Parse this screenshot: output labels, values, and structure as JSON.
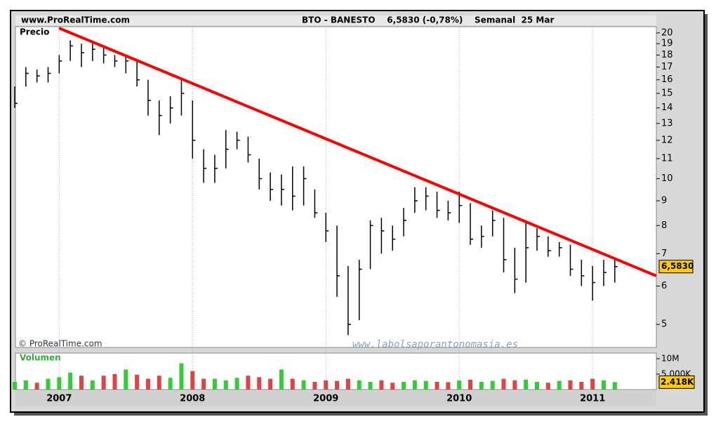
{
  "header": {
    "site": "www.ProRealTime.com",
    "title": "BTO - BANESTO    6,5830 (-0,78%)    Semanal  25 Mar"
  },
  "chart_data": [
    {
      "type": "ohlc",
      "label": "Precio",
      "copyright": "© ProRealTime.com",
      "watermark": "www.labolsaporantonomasia.es",
      "log_scale": true,
      "color": "#000000",
      "categories": [
        null,
        null,
        null,
        null,
        "2007",
        null,
        null,
        null,
        null,
        null,
        null,
        null,
        null,
        null,
        null,
        null,
        "2008",
        null,
        null,
        null,
        null,
        null,
        null,
        null,
        null,
        null,
        null,
        null,
        "2009",
        null,
        null,
        null,
        null,
        null,
        null,
        null,
        null,
        null,
        null,
        null,
        "2010",
        null,
        null,
        null,
        null,
        null,
        null,
        null,
        null,
        null,
        null,
        null,
        "2011",
        null,
        null
      ],
      "close": [
        14.3,
        16.5,
        16.3,
        16.5,
        17.5,
        18.8,
        18.2,
        18.5,
        18.0,
        17.5,
        17.5,
        16.0,
        14.5,
        13.5,
        14.0,
        15.0,
        12.0,
        10.5,
        10.5,
        11.5,
        12.0,
        11.2,
        10.0,
        9.5,
        9.5,
        9.2,
        10.0,
        8.5,
        7.8,
        6.3,
        5.0,
        6.5,
        8.0,
        7.8,
        7.5,
        8.2,
        9.0,
        9.2,
        8.6,
        8.5,
        8.8,
        7.5,
        7.6,
        8.2,
        6.8,
        6.2,
        7.2,
        7.6,
        7.1,
        7.2,
        6.5,
        6.3,
        6.1,
        6.4,
        6.58
      ],
      "high": [
        15.5,
        17.0,
        16.8,
        17.0,
        18.0,
        19.3,
        19.0,
        19.0,
        18.6,
        18.0,
        18.0,
        17.5,
        16.0,
        14.5,
        14.8,
        16.0,
        14.5,
        11.5,
        11.2,
        12.6,
        12.5,
        12.2,
        11.0,
        10.3,
        10.2,
        10.6,
        10.6,
        9.5,
        8.5,
        8.0,
        6.6,
        6.8,
        8.2,
        8.3,
        8.0,
        8.7,
        9.6,
        9.6,
        9.4,
        9.0,
        9.4,
        8.9,
        8.0,
        8.6,
        8.3,
        7.2,
        8.1,
        7.9,
        7.6,
        7.4,
        7.3,
        6.8,
        6.6,
        6.8,
        6.8
      ],
      "low": [
        14.0,
        15.5,
        15.8,
        15.8,
        16.5,
        17.5,
        17.0,
        17.5,
        17.3,
        17.0,
        16.5,
        15.5,
        13.5,
        12.3,
        13.0,
        13.5,
        11.0,
        9.8,
        9.8,
        10.5,
        11.5,
        10.8,
        9.5,
        9.0,
        8.8,
        8.6,
        8.8,
        8.3,
        7.4,
        5.7,
        4.75,
        5.1,
        6.5,
        7.0,
        7.1,
        7.6,
        8.5,
        8.6,
        8.3,
        8.2,
        8.1,
        7.3,
        7.2,
        7.6,
        6.4,
        5.8,
        6.1,
        7.1,
        6.9,
        6.9,
        6.3,
        6.0,
        5.6,
        6.0,
        6.1
      ],
      "last_value": 6.583,
      "last_label": "6,5830",
      "ylim": [
        4.48,
        20.6
      ],
      "yticks": [
        5,
        6,
        7,
        8,
        9,
        10,
        11,
        12,
        13,
        14,
        15,
        16,
        17,
        18,
        19,
        20
      ]
    },
    {
      "type": "volume",
      "label": "Volumen",
      "up_color": "#33cc33",
      "down_color": "#dd4444",
      "values": [
        2.5,
        3.0,
        2.2,
        3.5,
        4.0,
        5.5,
        4.5,
        3.0,
        4.5,
        5.0,
        6.5,
        4.8,
        3.5,
        4.5,
        3.8,
        8.5,
        6.0,
        3.5,
        3.5,
        3.0,
        3.8,
        4.5,
        4.0,
        3.5,
        6.5,
        3.5,
        3.0,
        2.5,
        3.0,
        2.8,
        3.5,
        3.0,
        2.5,
        3.0,
        2.2,
        2.5,
        3.0,
        2.8,
        2.5,
        2.4,
        3.0,
        3.2,
        2.5,
        2.8,
        3.5,
        3.0,
        3.2,
        2.5,
        2.2,
        2.8,
        3.0,
        2.5,
        3.5,
        3.0,
        2.418
      ],
      "last_label": "2.418K",
      "ylim": [
        0,
        11.8
      ],
      "yticks": [
        {
          "value": 10,
          "label": "10M"
        },
        {
          "value": 5,
          "label": "5.000K"
        }
      ]
    }
  ]
}
